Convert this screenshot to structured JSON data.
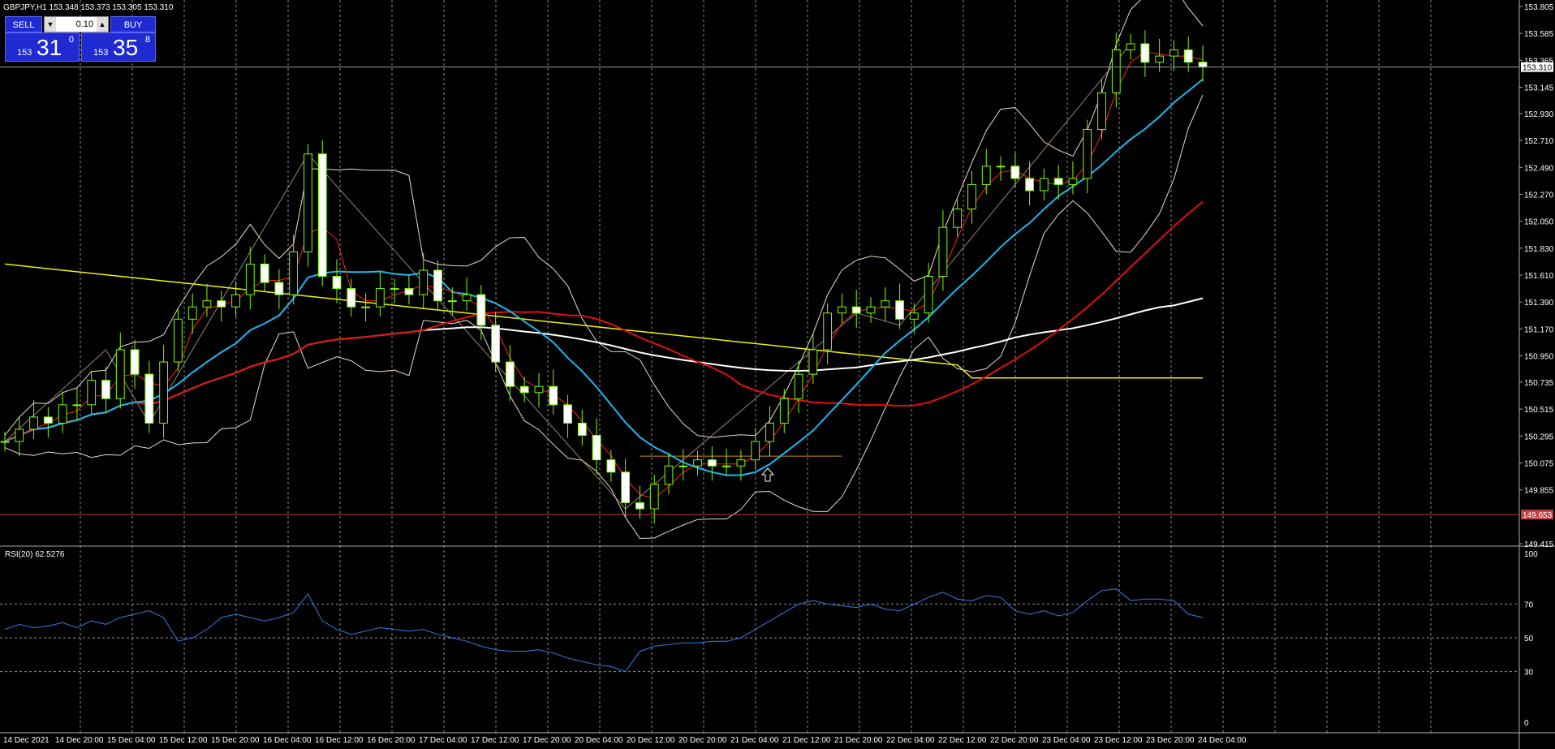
{
  "header": {
    "symbol_line": "GBPJPY,H1  153.348 153.373 153.305 153.310"
  },
  "trade_panel": {
    "sell_label": "SELL",
    "buy_label": "BUY",
    "lot_value": "0.10",
    "sell_small": "153",
    "sell_big": "31",
    "sell_sup": "0",
    "buy_small": "153",
    "buy_big": "35",
    "buy_sup": "8"
  },
  "main_price_axis": [
    "153.805",
    "153.585",
    "153.365",
    "153.145",
    "152.930",
    "152.710",
    "152.490",
    "152.270",
    "152.050",
    "151.830",
    "151.610",
    "151.390",
    "151.170",
    "150.950",
    "150.735",
    "150.515",
    "150.295",
    "150.075",
    "149.855",
    "149.415"
  ],
  "current_price_label": "153.310",
  "horizontal_line_label": "149.653",
  "rsi": {
    "title": "RSI(20) 62.5276",
    "levels": [
      "100",
      "70",
      "50",
      "30",
      "0"
    ]
  },
  "time_axis": [
    "14 Dec 2021",
    "14 Dec 20:00",
    "15 Dec 04:00",
    "15 Dec 12:00",
    "15 Dec 20:00",
    "16 Dec 04:00",
    "16 Dec 12:00",
    "16 Dec 20:00",
    "17 Dec 04:00",
    "17 Dec 12:00",
    "17 Dec 20:00",
    "20 Dec 04:00",
    "20 Dec 12:00",
    "20 Dec 20:00",
    "21 Dec 04:00",
    "21 Dec 12:00",
    "21 Dec 20:00",
    "22 Dec 04:00",
    "22 Dec 12:00",
    "22 Dec 20:00",
    "23 Dec 04:00",
    "23 Dec 12:00",
    "23 Dec 20:00",
    "24 Dec 04:00"
  ],
  "colors": {
    "background": "#000000",
    "candle": "#7cfc00",
    "ma_fast": "#ff2020",
    "ma_cyan": "#19b8f0",
    "ma_red": "#e01010",
    "ma_white": "#ffffff",
    "ma_yellow": "#f0f000",
    "bollinger": "#e8dcc8",
    "rsi_line": "#2f7fe0",
    "grid": "#c8c8c8",
    "hline": "#c04040",
    "panel": "#1f2bd1"
  },
  "chart_data": {
    "type": "candlestick",
    "symbol": "GBPJPY",
    "timeframe": "H1",
    "ylim": [
      149.415,
      153.805
    ],
    "close_path": [
      150.25,
      150.35,
      150.45,
      150.4,
      150.55,
      150.55,
      150.75,
      150.6,
      151.0,
      150.8,
      150.4,
      150.9,
      151.25,
      151.35,
      151.4,
      151.35,
      151.45,
      151.7,
      151.55,
      151.45,
      151.8,
      152.6,
      151.6,
      151.5,
      151.35,
      151.35,
      151.5,
      151.5,
      151.45,
      151.65,
      151.4,
      151.4,
      151.45,
      151.2,
      150.9,
      150.7,
      150.65,
      150.7,
      150.55,
      150.4,
      150.3,
      150.1,
      150.0,
      149.75,
      149.7,
      149.9,
      150.05,
      150.05,
      150.1,
      150.05,
      150.05,
      150.1,
      150.25,
      150.4,
      150.6,
      150.8,
      151.0,
      151.3,
      151.35,
      151.3,
      151.35,
      151.4,
      151.25,
      151.3,
      151.6,
      152.0,
      152.15,
      152.35,
      152.5,
      152.5,
      152.4,
      152.3,
      152.4,
      152.35,
      152.4,
      152.8,
      153.1,
      153.45,
      153.5,
      153.35,
      153.4,
      153.45,
      153.35,
      153.31
    ],
    "rsi_path": [
      55,
      58,
      56,
      57,
      59,
      56,
      60,
      58,
      62,
      64,
      66,
      62,
      48,
      50,
      55,
      62,
      64,
      62,
      60,
      62,
      65,
      76,
      60,
      55,
      52,
      54,
      56,
      55,
      54,
      55,
      52,
      50,
      48,
      45,
      43,
      42,
      42,
      43,
      41,
      38,
      36,
      34,
      33,
      30,
      42,
      45,
      46,
      47,
      47,
      48,
      48,
      50,
      55,
      60,
      65,
      70,
      72,
      70,
      69,
      68,
      70,
      67,
      66,
      70,
      74,
      77,
      73,
      72,
      75,
      74,
      66,
      64,
      66,
      63,
      65,
      72,
      78,
      79,
      72,
      73,
      73,
      72,
      64,
      62
    ]
  }
}
